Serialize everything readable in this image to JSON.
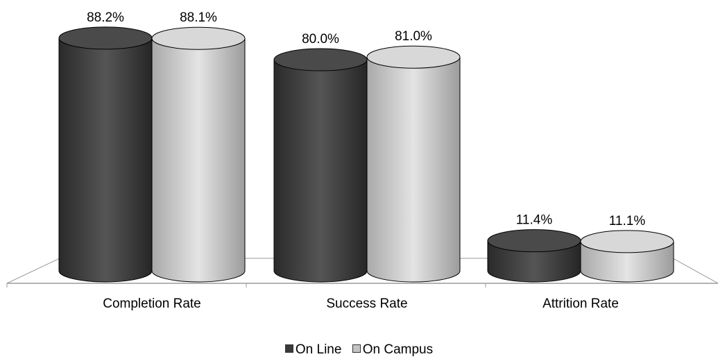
{
  "chart_data": {
    "type": "bar",
    "title": "",
    "xlabel": "",
    "ylabel": "",
    "categories": [
      "Completion Rate",
      "Success Rate",
      "Attrition Rate"
    ],
    "series": [
      {
        "name": "On Line",
        "values": [
          88.2,
          80.0,
          11.4
        ],
        "labels": [
          "88.2%",
          "80.0%",
          "11.4%"
        ],
        "color": "#3a3a3a"
      },
      {
        "name": "On Campus",
        "values": [
          88.1,
          81.0,
          11.1
        ],
        "labels": [
          "88.1%",
          "81.0%",
          "11.1%"
        ],
        "color": "#c4c4c4"
      }
    ],
    "ylim": [
      0,
      100
    ],
    "grid": false,
    "legend_position": "bottom",
    "style": "3d-cylinder"
  }
}
